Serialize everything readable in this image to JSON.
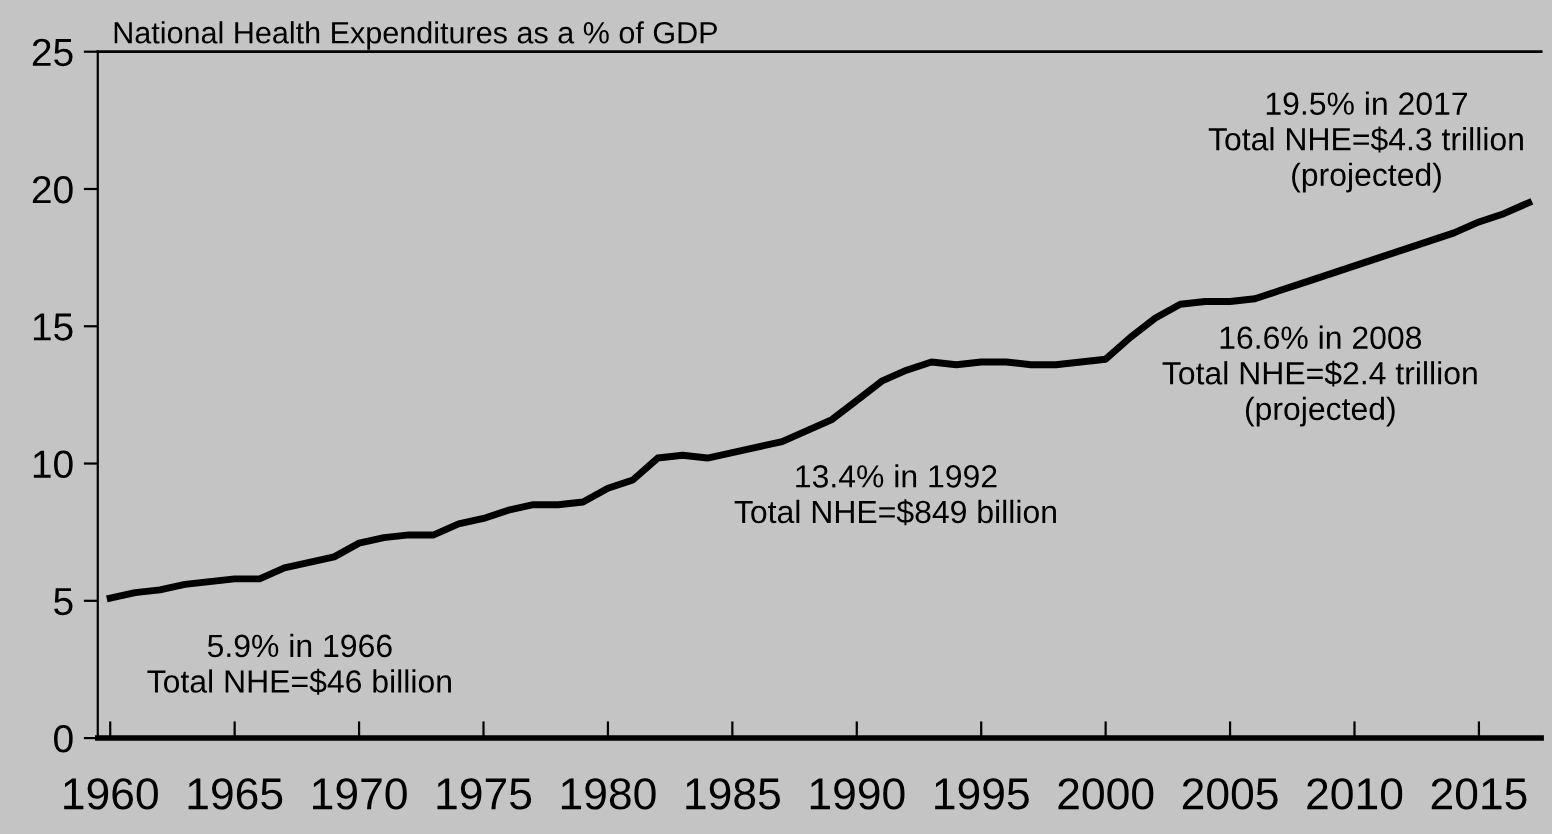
{
  "chart_data": {
    "type": "line",
    "title": "National Health Expenditures as a % of GDP",
    "x": [
      1960,
      1961,
      1962,
      1963,
      1964,
      1965,
      1966,
      1967,
      1968,
      1969,
      1970,
      1971,
      1972,
      1973,
      1974,
      1975,
      1976,
      1977,
      1978,
      1979,
      1980,
      1981,
      1982,
      1983,
      1984,
      1985,
      1986,
      1987,
      1988,
      1989,
      1990,
      1991,
      1992,
      1993,
      1994,
      1995,
      1996,
      1997,
      1998,
      1999,
      2000,
      2001,
      2002,
      2003,
      2004,
      2005,
      2006,
      2007,
      2008,
      2009,
      2010,
      2011,
      2012,
      2013,
      2014,
      2015,
      2016,
      2017
    ],
    "series": [
      {
        "color": "#000000",
        "values": [
          5.1,
          5.3,
          5.4,
          5.6,
          5.7,
          5.8,
          5.8,
          6.2,
          6.4,
          6.6,
          7.1,
          7.3,
          7.4,
          7.4,
          7.8,
          8.0,
          8.3,
          8.5,
          8.5,
          8.6,
          9.1,
          9.4,
          10.2,
          10.3,
          10.2,
          10.4,
          10.6,
          10.8,
          11.2,
          11.6,
          12.3,
          13.0,
          13.4,
          13.7,
          13.6,
          13.7,
          13.7,
          13.6,
          13.6,
          13.7,
          13.8,
          14.6,
          15.3,
          15.8,
          15.9,
          15.9,
          16.0,
          16.3,
          16.6,
          16.9,
          17.2,
          17.5,
          17.8,
          18.1,
          18.4,
          18.8,
          19.1,
          19.5
        ]
      }
    ],
    "xlim": [
      1959.5,
      2017.5
    ],
    "xticks": [
      1960,
      1965,
      1970,
      1975,
      1980,
      1985,
      1990,
      1995,
      2000,
      2005,
      2010,
      2015
    ],
    "ylim": [
      0,
      25
    ],
    "yticks": [
      0,
      5,
      10,
      15,
      20,
      25
    ],
    "annotations": [
      "5.9% in 1966\nTotal NHE=$46 billion",
      "13.4% in 1992\nTotal NHE=$849 billion",
      "16.6% in 2008\nTotal NHE=$2.4 trillion\n(projected)",
      "19.5% in 2017\nTotal NHE=$4.3 trillion\n(projected)"
    ],
    "grid": false,
    "legend": false,
    "marker": "none",
    "line_style": "solid"
  }
}
